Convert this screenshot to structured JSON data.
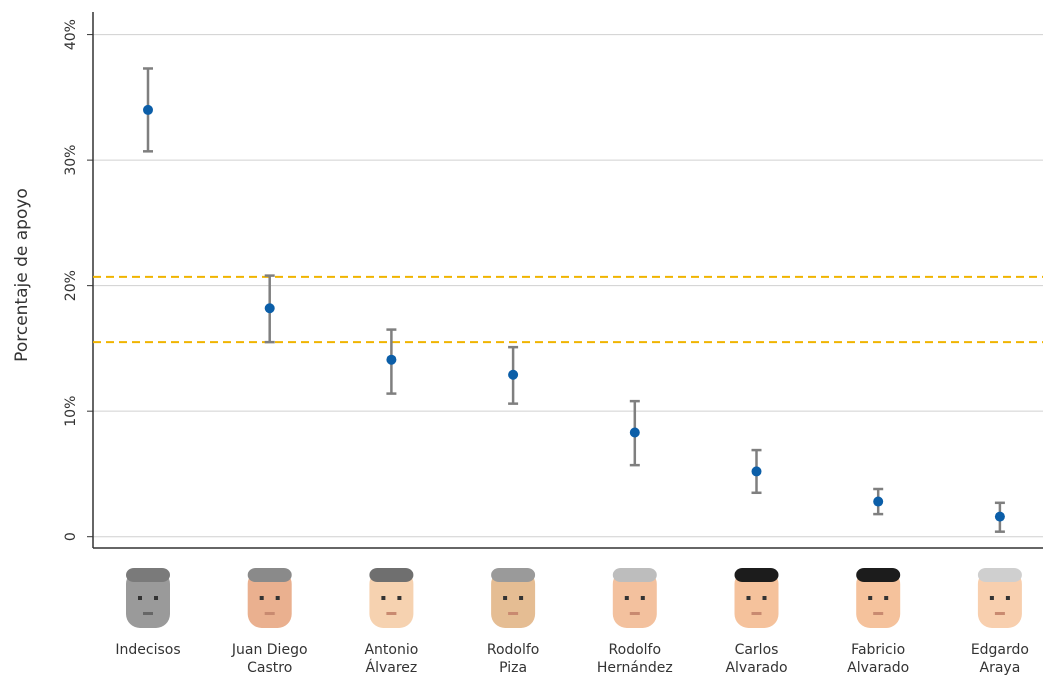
{
  "chart_data": {
    "type": "errorbar",
    "y_label": "Porcentaje de apoyo",
    "categories": [
      [
        "Indecisos"
      ],
      [
        "Juan Diego",
        "Castro"
      ],
      [
        "Antonio",
        "Álvarez"
      ],
      [
        "Rodolfo",
        "Piza"
      ],
      [
        "Rodolfo",
        "Hernández"
      ],
      [
        "Carlos",
        "Alvarado"
      ],
      [
        "Fabricio",
        "Alvarado"
      ],
      [
        "Edgardo",
        "Araya"
      ]
    ],
    "series": [
      {
        "color": "#0b5ea8",
        "error_color": "#7f7f7f",
        "values": [
          34.0,
          18.2,
          14.1,
          12.9,
          8.3,
          5.2,
          2.8,
          1.6
        ],
        "lower": [
          30.7,
          15.5,
          11.4,
          10.6,
          5.7,
          3.5,
          1.8,
          0.4
        ],
        "upper": [
          37.3,
          20.8,
          16.5,
          15.1,
          10.8,
          6.9,
          3.8,
          2.7
        ]
      }
    ],
    "reference_lines": [
      20.7,
      15.5
    ],
    "reference_color": "#f0b400",
    "ylim": [
      -0.9,
      41.8
    ],
    "yticks": [
      0,
      {
        "value": 10,
        "label": "10%"
      },
      {
        "value": 20,
        "label": "20%"
      },
      {
        "value": 30,
        "label": "30%"
      },
      {
        "value": 40,
        "label": "40%"
      }
    ],
    "grid": true
  }
}
